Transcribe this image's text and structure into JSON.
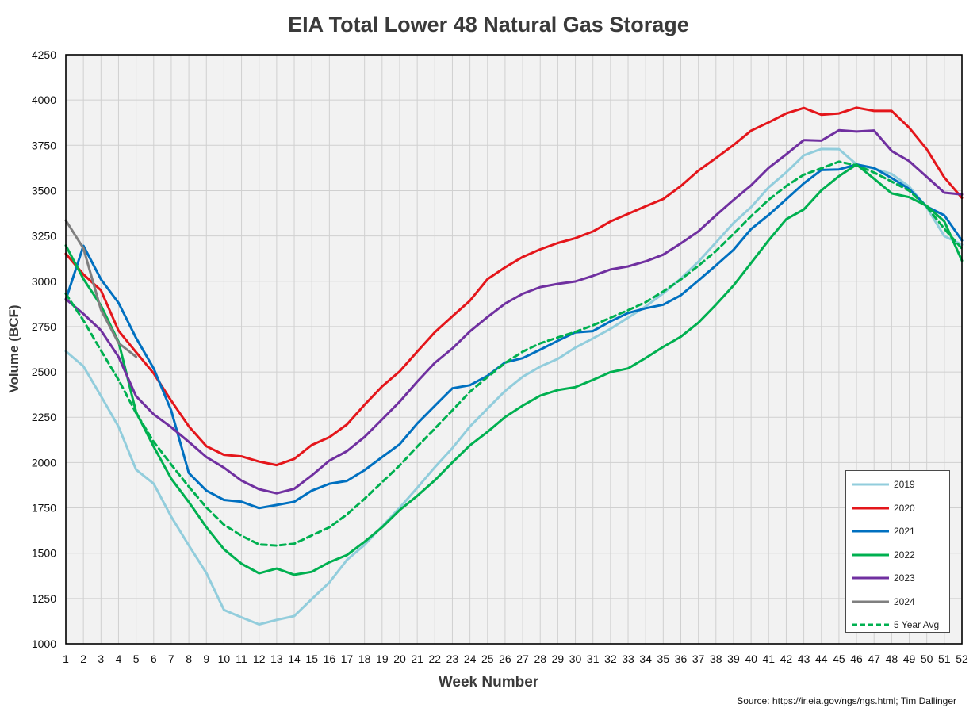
{
  "chart_data": {
    "type": "line",
    "title": "EIA Total Lower 48 Natural Gas Storage",
    "xlabel": "Week Number",
    "ylabel": "Volume (BCF)",
    "source": "Source: https://ir.eia.gov/ngs/ngs.html; Tim Dallinger",
    "ylim": [
      1000,
      4250
    ],
    "yticks": [
      1000,
      1250,
      1500,
      1750,
      2000,
      2250,
      2500,
      2750,
      3000,
      3250,
      3500,
      3750,
      4000,
      4250
    ],
    "x": [
      1,
      2,
      3,
      4,
      5,
      6,
      7,
      8,
      9,
      10,
      11,
      12,
      13,
      14,
      15,
      16,
      17,
      18,
      19,
      20,
      21,
      22,
      23,
      24,
      25,
      26,
      27,
      28,
      29,
      30,
      31,
      32,
      33,
      34,
      35,
      36,
      37,
      38,
      39,
      40,
      41,
      42,
      43,
      44,
      45,
      46,
      47,
      48,
      49,
      50,
      51,
      52
    ],
    "grid": true,
    "legend_position": "bottom-right",
    "series": [
      {
        "name": "2019",
        "color": "#92CDDC",
        "dash": false,
        "values": [
          2614,
          2531,
          2367,
          2197,
          1961,
          1883,
          1701,
          1543,
          1390,
          1187,
          1146,
          1107,
          1132,
          1153,
          1247,
          1339,
          1463,
          1546,
          1648,
          1751,
          1861,
          1974,
          2080,
          2199,
          2298,
          2395,
          2473,
          2529,
          2572,
          2634,
          2685,
          2738,
          2799,
          2861,
          2933,
          3015,
          3108,
          3214,
          3322,
          3409,
          3518,
          3601,
          3695,
          3730,
          3729,
          3645,
          3622,
          3592,
          3522,
          3407,
          3249,
          3202
        ]
      },
      {
        "name": "2020",
        "color": "#E4161B",
        "dash": false,
        "values": [
          3152,
          3038,
          2950,
          2727,
          2609,
          2492,
          2341,
          2200,
          2090,
          2043,
          2034,
          2005,
          1986,
          2020,
          2097,
          2140,
          2210,
          2319,
          2420,
          2503,
          2612,
          2719,
          2807,
          2893,
          3012,
          3077,
          3134,
          3176,
          3211,
          3238,
          3275,
          3330,
          3372,
          3414,
          3454,
          3525,
          3610,
          3680,
          3752,
          3831,
          3877,
          3926,
          3956,
          3919,
          3926,
          3958,
          3940,
          3940,
          3847,
          3728,
          3573,
          3460
        ]
      },
      {
        "name": "2021",
        "color": "#0070C0",
        "dash": false,
        "values": [
          2899,
          3196,
          3011,
          2881,
          2687,
          2519,
          2287,
          1942,
          1845,
          1794,
          1784,
          1749,
          1766,
          1784,
          1845,
          1883,
          1899,
          1958,
          2030,
          2101,
          2215,
          2313,
          2410,
          2427,
          2479,
          2552,
          2576,
          2623,
          2672,
          2718,
          2725,
          2779,
          2825,
          2851,
          2871,
          2923,
          3004,
          3088,
          3174,
          3288,
          3366,
          3452,
          3540,
          3614,
          3617,
          3644,
          3625,
          3570,
          3509,
          3412,
          3364,
          3225
        ]
      },
      {
        "name": "2022",
        "color": "#00B050",
        "dash": false,
        "values": [
          3197,
          3013,
          2866,
          2666,
          2278,
          2088,
          1911,
          1782,
          1643,
          1522,
          1442,
          1389,
          1415,
          1381,
          1397,
          1450,
          1490,
          1563,
          1643,
          1738,
          1816,
          1902,
          2001,
          2095,
          2169,
          2251,
          2314,
          2369,
          2400,
          2416,
          2456,
          2499,
          2519,
          2577,
          2638,
          2694,
          2771,
          2871,
          2977,
          3101,
          3226,
          3342,
          3396,
          3501,
          3580,
          3644,
          3566,
          3485,
          3464,
          3416,
          3330,
          3114
        ]
      },
      {
        "name": "2023",
        "color": "#7030A0",
        "dash": false,
        "values": [
          2902,
          2820,
          2729,
          2583,
          2366,
          2266,
          2195,
          2114,
          2030,
          1972,
          1900,
          1853,
          1830,
          1855,
          1929,
          2011,
          2063,
          2141,
          2238,
          2336,
          2446,
          2550,
          2630,
          2724,
          2803,
          2877,
          2931,
          2968,
          2986,
          2999,
          3030,
          3065,
          3082,
          3110,
          3147,
          3209,
          3275,
          3364,
          3449,
          3529,
          3626,
          3700,
          3779,
          3776,
          3833,
          3826,
          3832,
          3719,
          3663,
          3576,
          3489,
          3479
        ]
      },
      {
        "name": "2024",
        "color": "#7F7F7F",
        "dash": false,
        "values": [
          3336,
          3182,
          2843,
          2659,
          2584,
          null,
          null,
          null,
          null,
          null,
          null,
          null,
          null,
          null,
          null,
          null,
          null,
          null,
          null,
          null,
          null,
          null,
          null,
          null,
          null,
          null,
          null,
          null,
          null,
          null,
          null,
          null,
          null,
          null,
          null,
          null,
          null,
          null,
          null,
          null,
          null,
          null,
          null,
          null,
          null,
          null,
          null,
          null,
          null,
          null,
          null,
          null
        ]
      },
      {
        "name": "5 Year Avg",
        "color": "#00B050",
        "dash": true,
        "values": [
          2931,
          2784,
          2618,
          2456,
          2273,
          2114,
          1989,
          1867,
          1752,
          1657,
          1596,
          1548,
          1542,
          1552,
          1598,
          1643,
          1714,
          1800,
          1892,
          1984,
          2088,
          2187,
          2288,
          2391,
          2472,
          2549,
          2612,
          2658,
          2690,
          2721,
          2757,
          2799,
          2840,
          2885,
          2944,
          3010,
          3085,
          3167,
          3262,
          3359,
          3450,
          3525,
          3588,
          3623,
          3660,
          3640,
          3600,
          3550,
          3500,
          3410,
          3290,
          3180
        ]
      }
    ]
  }
}
